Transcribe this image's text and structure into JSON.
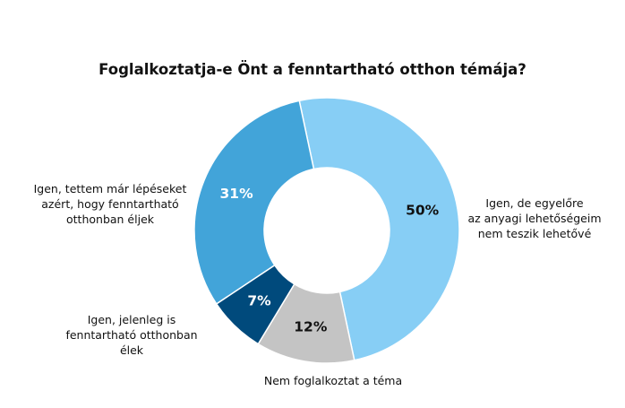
{
  "chart_data": {
    "type": "pie",
    "variant": "donut",
    "title": "Foglalkoztatja-e Önt a fenntartható otthon témája?",
    "start_category": 0,
    "slices": [
      {
        "label": "Igen, de egyelőre az anyagi lehetőségeim nem teszik lehetővé",
        "label_lines": [
          "Igen, de egyelőre",
          "az anyagi lehetőségeim",
          "nem teszik lehetővé"
        ],
        "value": 50,
        "display": "50%",
        "color": "#87CEF5",
        "text_color": "#111111"
      },
      {
        "label": "Nem foglalkoztat a téma",
        "label_lines": [
          "Nem foglalkoztat a téma"
        ],
        "value": 12,
        "display": "12%",
        "color": "#C4C4C4",
        "text_color": "#111111"
      },
      {
        "label": "Igen, jelenleg is fenntartható otthonban élek",
        "label_lines": [
          "Igen, jelenleg is",
          "fenntartható otthonban",
          "élek"
        ],
        "value": 7,
        "display": "7%",
        "color": "#004A7C",
        "text_color": "#ffffff"
      },
      {
        "label": "Igen, tettem már lépéseket azért, hogy fenntartható otthonban éljek",
        "label_lines": [
          "Igen, tettem már lépéseket",
          "azért, hogy fenntartható",
          "otthonban éljek"
        ],
        "value": 31,
        "display": "31%",
        "color": "#42A4D9",
        "text_color": "#ffffff"
      }
    ]
  }
}
